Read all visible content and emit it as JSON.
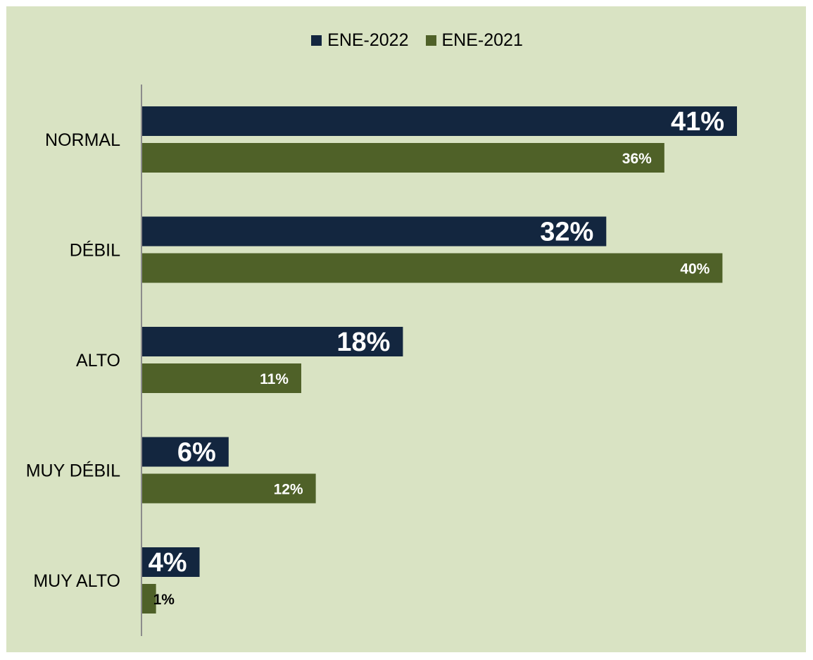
{
  "chart_data": {
    "type": "bar",
    "orientation": "horizontal",
    "categories": [
      "NORMAL",
      "DÉBIL",
      "ALTO",
      "MUY DÉBIL",
      "MUY ALTO"
    ],
    "series": [
      {
        "name": "ENE-2022",
        "values": [
          41,
          32,
          18,
          6,
          4
        ],
        "labels": [
          "41%",
          "32%",
          "18%",
          "6%",
          "4%"
        ],
        "color": "#13263f"
      },
      {
        "name": "ENE-2021",
        "values": [
          36,
          40,
          11,
          12,
          1
        ],
        "labels": [
          "36%",
          "40%",
          "11%",
          "12%",
          "1%"
        ],
        "color": "#4f6128"
      }
    ],
    "xlim": [
      0,
      41
    ],
    "legend": "top-center",
    "grid": false,
    "background": "#d9e3c3"
  }
}
